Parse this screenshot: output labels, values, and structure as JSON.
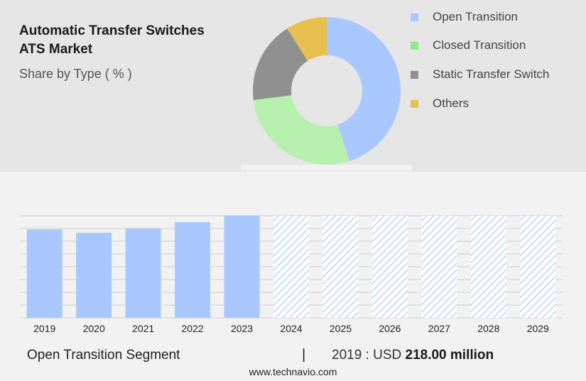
{
  "header": {
    "title_line1": "Automatic Transfer Switches",
    "title_line2": "ATS Market",
    "subtitle": "Share by Type ( % )"
  },
  "legend": {
    "items": [
      {
        "label": "Open Transition",
        "color": "#a8c8ff"
      },
      {
        "label": "Closed Transition",
        "color": "#8ee88e"
      },
      {
        "label": "Static Transfer Switch",
        "color": "#909090"
      },
      {
        "label": "Others",
        "color": "#e8c050"
      }
    ]
  },
  "chart_data": [
    {
      "type": "pie",
      "style": "donut",
      "categories": [
        "Open Transition",
        "Closed Transition",
        "Static Transfer Switch",
        "Others"
      ],
      "values": [
        45,
        28,
        18,
        9
      ],
      "colors": [
        "#a8c8ff",
        "#b8f0b0",
        "#909090",
        "#e8c050"
      ],
      "legend": "right"
    },
    {
      "type": "bar",
      "categories": [
        "2019",
        "2020",
        "2021",
        "2022",
        "2023",
        "2024",
        "2025",
        "2026",
        "2027",
        "2028",
        "2029"
      ],
      "values": [
        218,
        210,
        220,
        236,
        252,
        252,
        252,
        252,
        252,
        252,
        252
      ],
      "forecast_from": "2024",
      "bar_color": "#a8c8ff",
      "forecast_pattern": "diagonal-hatch",
      "grid": true
    }
  ],
  "footer": {
    "segment_label": "Open Transition Segment",
    "separator": "|",
    "value_prefix": "2019 : USD",
    "value_amount": "218.00 million",
    "website": "www.technavio.com"
  }
}
